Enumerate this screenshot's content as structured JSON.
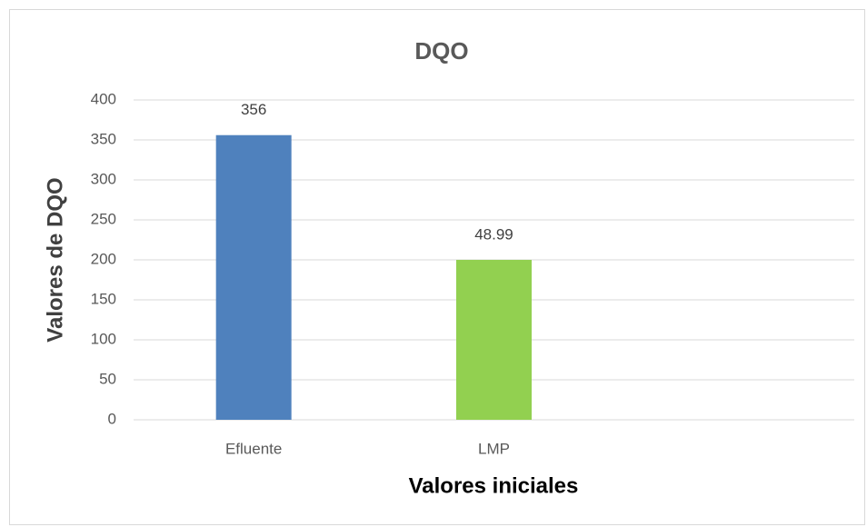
{
  "chart_data": {
    "type": "bar",
    "title": "DQO",
    "x_label": "Valores iniciales",
    "y_label": "Valores de  DQO",
    "categories": [
      "Efluente",
      "LMP",
      null
    ],
    "series": [
      {
        "name": "DQO",
        "color": [
          "#4f81bd",
          "#92d050",
          null
        ],
        "values": [
          356,
          200,
          null
        ]
      }
    ],
    "annotations": [
      {
        "text": "48.99"
      }
    ],
    "ylim": [
      0,
      400
    ],
    "yticks": [
      0,
      50,
      100,
      150,
      200,
      250,
      300,
      350,
      400
    ],
    "grid": true
  }
}
